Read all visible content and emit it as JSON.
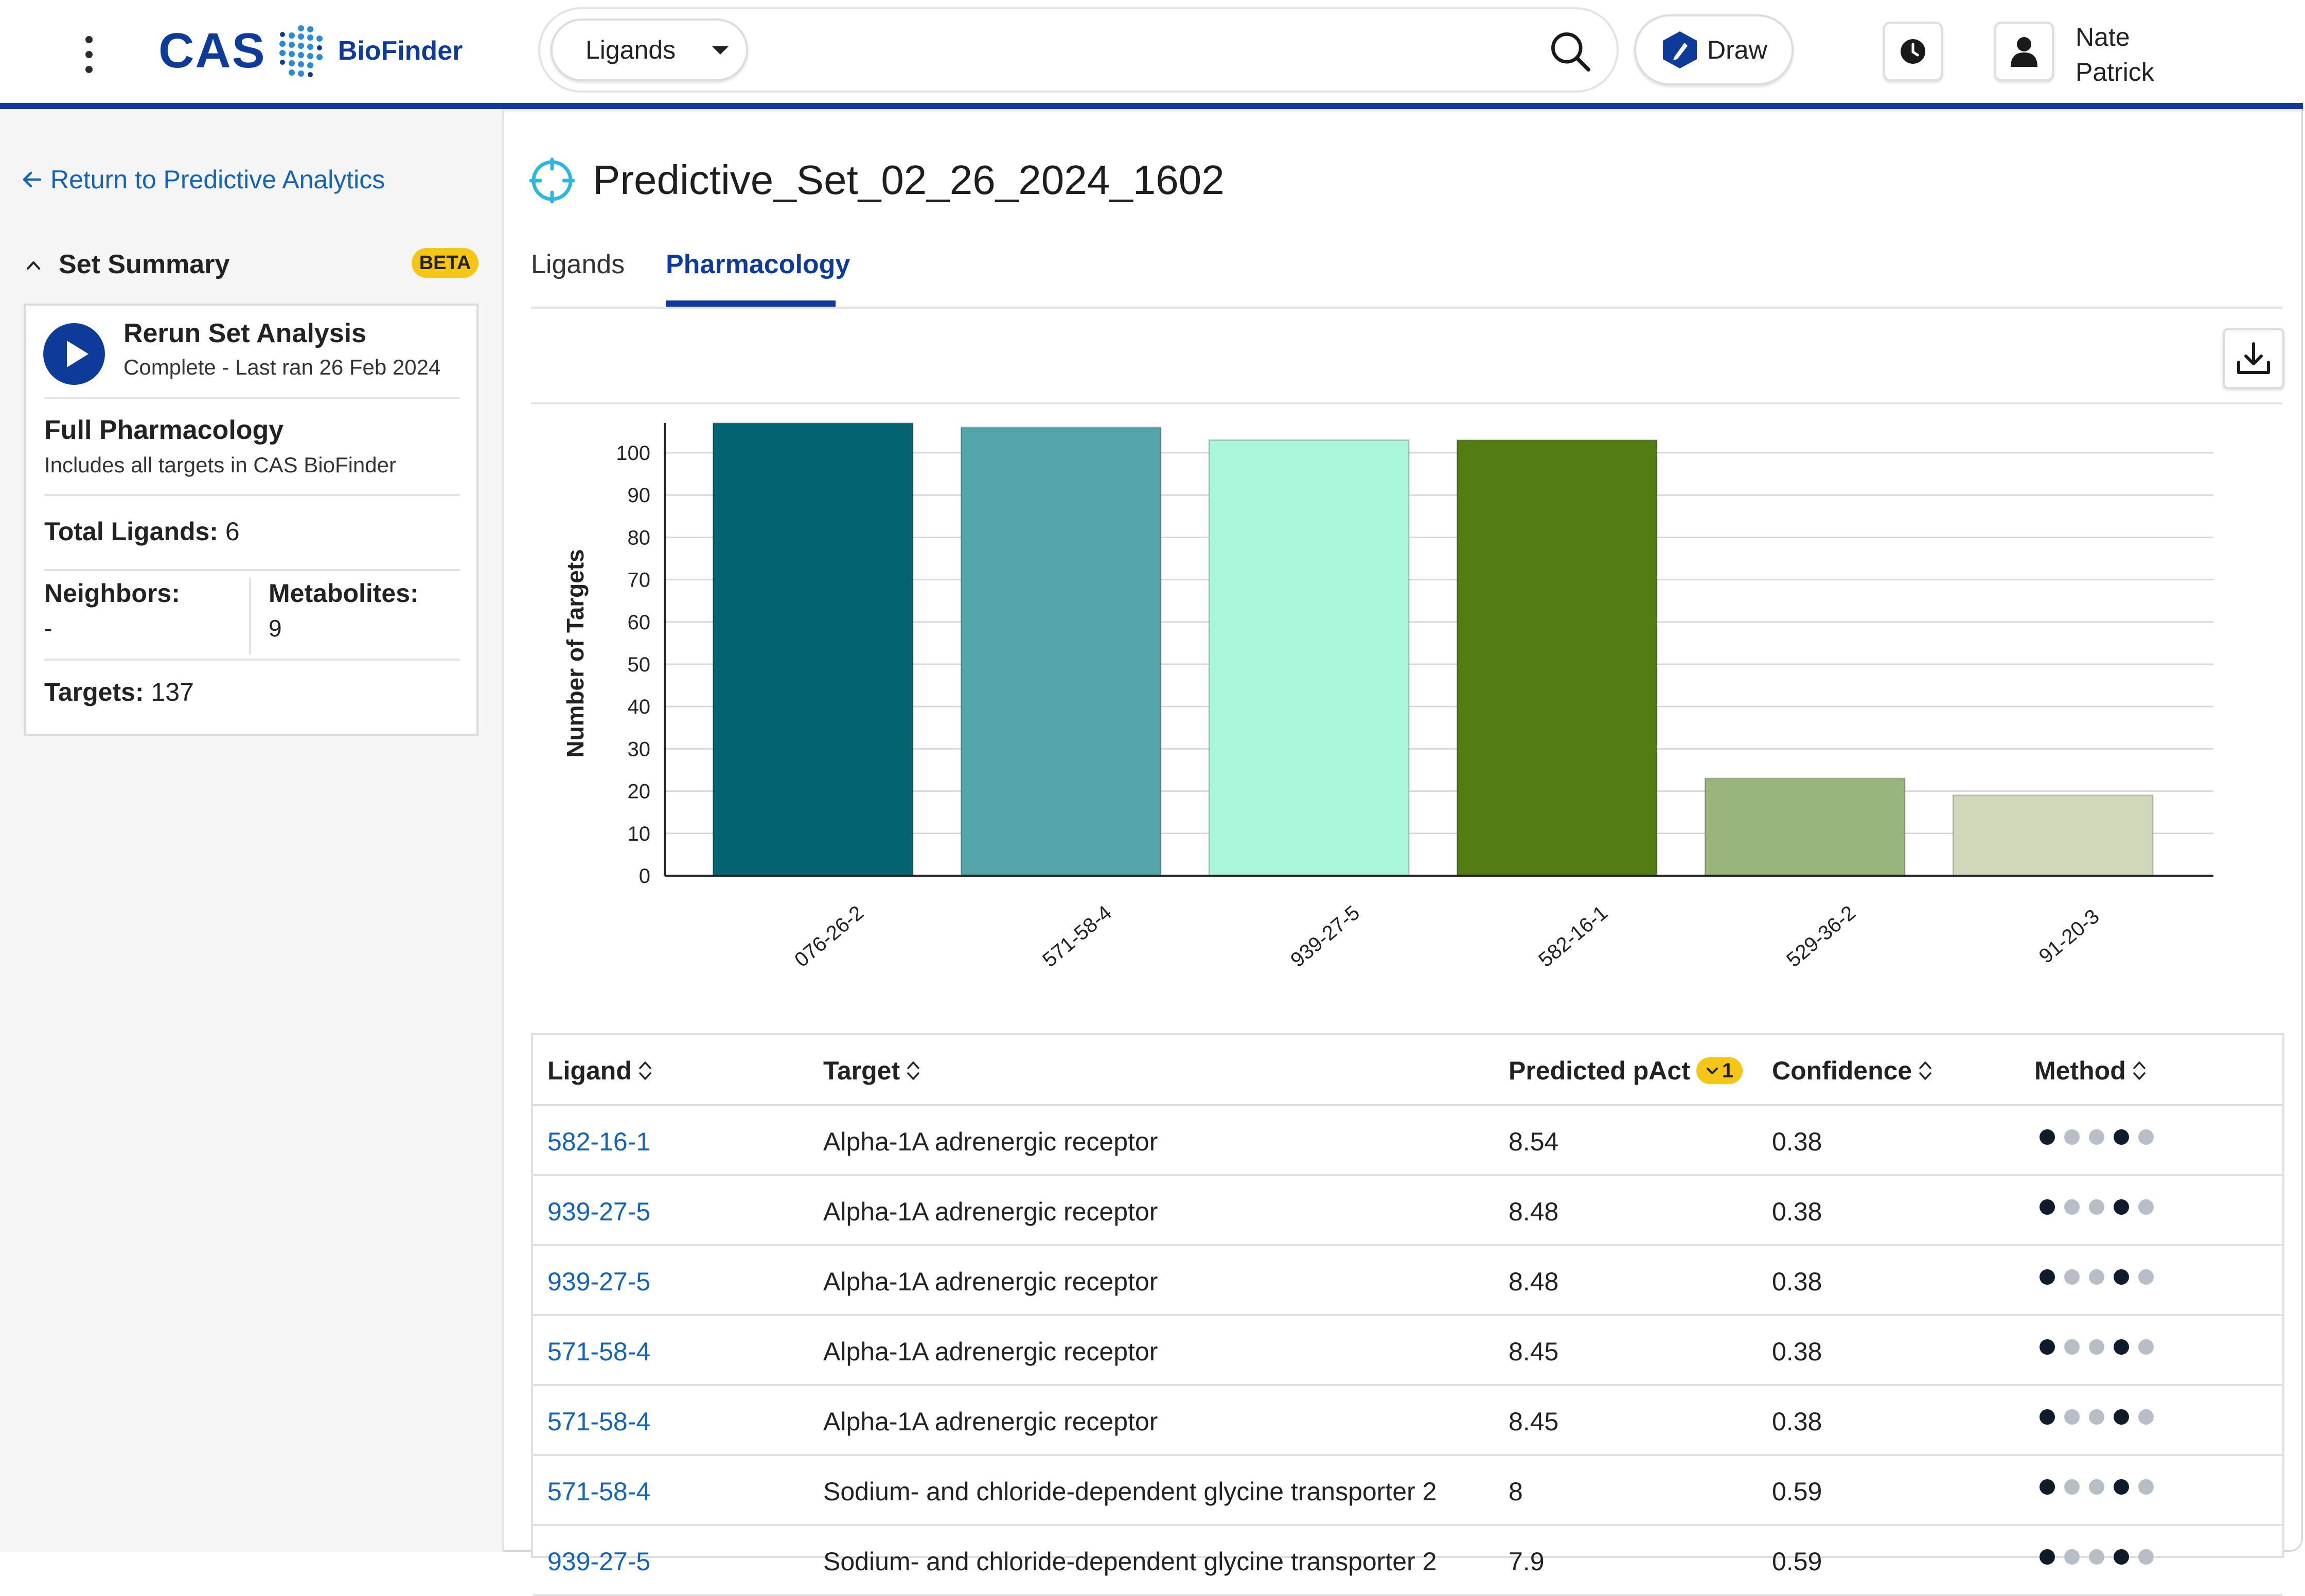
{
  "header": {
    "logo_text": "CAS",
    "product_name": "BioFinder",
    "search_type": "Ligands",
    "search_value": "",
    "draw_label": "Draw",
    "user_first_name": "Nate",
    "user_last_name": "Patrick"
  },
  "sidebar": {
    "back_link": "Return to Predictive Analytics",
    "set_summary_title": "Set Summary",
    "beta_badge": "BETA",
    "rerun_title": "Rerun Set Analysis",
    "rerun_status": "Complete - Last ran 26 Feb 2024",
    "full_pharm_title": "Full Pharmacology",
    "full_pharm_sub": "Includes all targets in CAS BioFinder",
    "total_ligands_label": "Total Ligands:",
    "total_ligands_value": "6",
    "neighbors_label": "Neighbors:",
    "neighbors_value": "-",
    "metabolites_label": "Metabolites:",
    "metabolites_value": "9",
    "targets_label": "Targets:",
    "targets_value": "137"
  },
  "main": {
    "title": "Predictive_Set_02_26_2024_1602",
    "tabs": [
      {
        "label": "Ligands",
        "active": false
      },
      {
        "label": "Pharmacology",
        "active": true
      }
    ]
  },
  "chart_data": {
    "type": "bar",
    "categories": [
      "076-26-2",
      "571-58-4",
      "939-27-5",
      "582-16-1",
      "529-36-2",
      "91-20-3"
    ],
    "values": [
      107,
      106,
      103,
      103,
      23,
      19
    ],
    "colors": [
      "#03636e",
      "#54a5aa",
      "#a9f7d8",
      "#527d13",
      "#9ab57b",
      "#cfd9b9"
    ],
    "ylabel": "Number of Targets",
    "xlabel": "",
    "yticks": [
      0,
      10,
      20,
      30,
      40,
      50,
      60,
      70,
      80,
      90,
      100
    ],
    "ylim": [
      0,
      107
    ],
    "grid": true
  },
  "table": {
    "headers": {
      "ligand": "Ligand",
      "target": "Target",
      "pact": "Predicted pAct",
      "pact_sort_badge": "1",
      "confidence": "Confidence",
      "method": "Method"
    },
    "rows": [
      {
        "ligand": "582-16-1",
        "target": "Alpha-1A adrenergic receptor",
        "pact": "8.54",
        "confidence": "0.38"
      },
      {
        "ligand": "939-27-5",
        "target": "Alpha-1A adrenergic receptor",
        "pact": "8.48",
        "confidence": "0.38"
      },
      {
        "ligand": "939-27-5",
        "target": "Alpha-1A adrenergic receptor",
        "pact": "8.48",
        "confidence": "0.38"
      },
      {
        "ligand": "571-58-4",
        "target": "Alpha-1A adrenergic receptor",
        "pact": "8.45",
        "confidence": "0.38"
      },
      {
        "ligand": "571-58-4",
        "target": "Alpha-1A adrenergic receptor",
        "pact": "8.45",
        "confidence": "0.38"
      },
      {
        "ligand": "571-58-4",
        "target": "Sodium- and chloride-dependent glycine transporter 2",
        "pact": "8",
        "confidence": "0.59"
      },
      {
        "ligand": "939-27-5",
        "target": "Sodium- and chloride-dependent glycine transporter 2",
        "pact": "7.9",
        "confidence": "0.59"
      }
    ],
    "method_dot_colors": [
      "#0d1b2a",
      "#b8bec6",
      "#b8bec6",
      "#0d1b2a",
      "#b8bec6"
    ]
  }
}
